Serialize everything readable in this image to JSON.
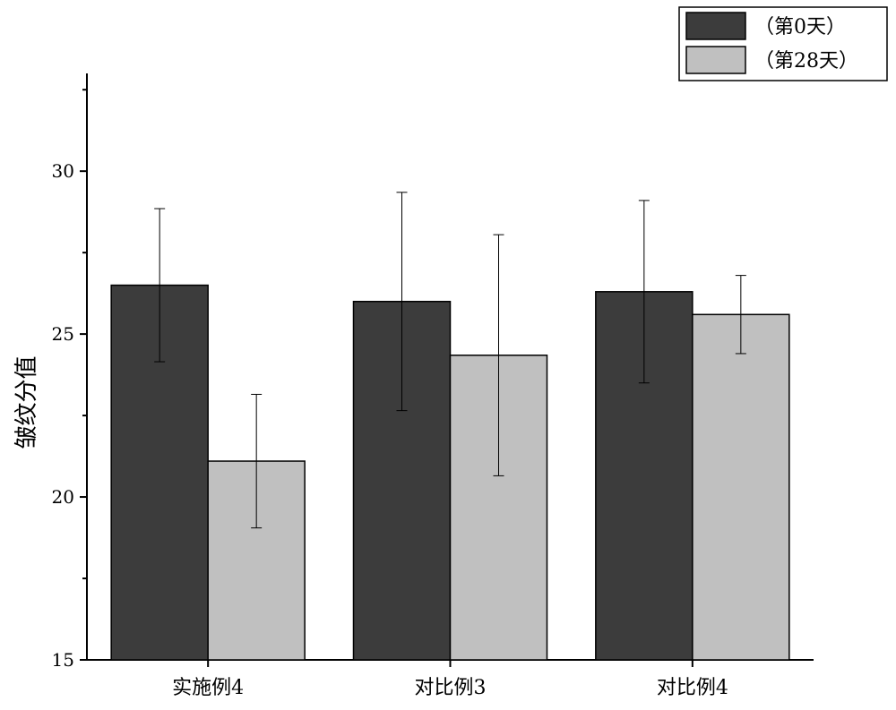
{
  "chart_data": {
    "type": "bar",
    "title": "",
    "xlabel": "",
    "ylabel": "皱纹分值",
    "ylim": [
      15,
      33
    ],
    "yticks": [
      15,
      20,
      25,
      30
    ],
    "categories": [
      "实施例4",
      "对比例3",
      "对比例4"
    ],
    "series": [
      {
        "name": "（第0天）",
        "color": "#3c3c3c",
        "values": [
          26.5,
          26.0,
          26.3
        ],
        "errors": [
          2.35,
          3.35,
          2.8
        ]
      },
      {
        "name": "（第28天）",
        "color": "#c0c0c0",
        "values": [
          21.1,
          24.35,
          25.6
        ],
        "errors": [
          2.05,
          3.7,
          1.2
        ]
      }
    ],
    "grid": false,
    "legend_position": "top-right"
  }
}
